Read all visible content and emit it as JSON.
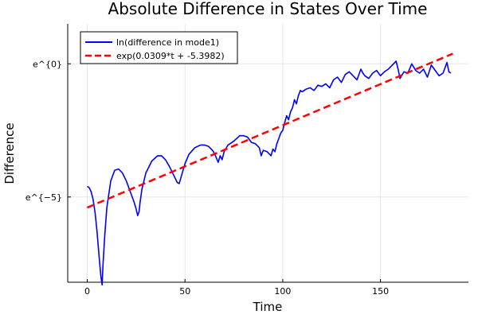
{
  "chart_data": {
    "type": "line",
    "title": "Absolute Difference in States Over Time",
    "xlabel": "Time",
    "ylabel": "Difference",
    "xlim": [
      -10,
      195
    ],
    "ylim": [
      -8.2,
      1.5
    ],
    "y_scale": "log (natural)",
    "grid": true,
    "legend_position": "top-left",
    "x_ticks": [
      {
        "value": 0,
        "label": "0"
      },
      {
        "value": 50,
        "label": "50"
      },
      {
        "value": 100,
        "label": "100"
      },
      {
        "value": 150,
        "label": "150"
      }
    ],
    "y_ticks": [
      {
        "value": 0,
        "label": "e^{0}"
      },
      {
        "value": -5,
        "label": "e^{−5}"
      }
    ],
    "series": [
      {
        "name": "ln(difference in mode1)",
        "color": "#0000ff",
        "style": "solid",
        "x": [
          0,
          1,
          2,
          3,
          4,
          5,
          6,
          7,
          7.6,
          8,
          9,
          10,
          12,
          14,
          16,
          18,
          20,
          22,
          24,
          25,
          25.8,
          26.5,
          27,
          28,
          30,
          33,
          36,
          38,
          40,
          42,
          44,
          46,
          47,
          48,
          50,
          52,
          55,
          58,
          60,
          62,
          64,
          65,
          67,
          68,
          69,
          70,
          72,
          75,
          78,
          80,
          82,
          84,
          86,
          88,
          89,
          90,
          92,
          94,
          95,
          96,
          97,
          98,
          99,
          100,
          101,
          102,
          103,
          104,
          105,
          106,
          107,
          108,
          109,
          110,
          112,
          114,
          116,
          118,
          120,
          122,
          124,
          126,
          128,
          130,
          132,
          134,
          136,
          138,
          140,
          141,
          142,
          144,
          146,
          148,
          150,
          152,
          154,
          156,
          158,
          159,
          160,
          162,
          164,
          166,
          168,
          170,
          172,
          174,
          176,
          178,
          180,
          182,
          184,
          185,
          186
        ],
        "y": [
          -4.6,
          -4.65,
          -4.8,
          -5.1,
          -5.6,
          -6.3,
          -7.2,
          -8.0,
          -8.3,
          -7.6,
          -6.4,
          -5.4,
          -4.4,
          -4.0,
          -3.95,
          -4.1,
          -4.4,
          -4.8,
          -5.2,
          -5.45,
          -5.7,
          -5.55,
          -5.2,
          -4.7,
          -4.1,
          -3.65,
          -3.45,
          -3.45,
          -3.6,
          -3.85,
          -4.15,
          -4.45,
          -4.5,
          -4.25,
          -3.75,
          -3.4,
          -3.15,
          -3.05,
          -3.05,
          -3.1,
          -3.25,
          -3.35,
          -3.7,
          -3.45,
          -3.6,
          -3.3,
          -3.05,
          -2.9,
          -2.7,
          -2.7,
          -2.75,
          -2.95,
          -3.0,
          -3.15,
          -3.45,
          -3.25,
          -3.3,
          -3.45,
          -3.2,
          -3.3,
          -3.0,
          -2.8,
          -2.6,
          -2.5,
          -2.2,
          -1.95,
          -2.1,
          -1.8,
          -1.65,
          -1.35,
          -1.5,
          -1.2,
          -1.0,
          -1.05,
          -0.95,
          -0.9,
          -1.0,
          -0.8,
          -0.85,
          -0.75,
          -0.9,
          -0.6,
          -0.5,
          -0.7,
          -0.4,
          -0.3,
          -0.45,
          -0.6,
          -0.2,
          -0.35,
          -0.45,
          -0.55,
          -0.35,
          -0.25,
          -0.45,
          -0.3,
          -0.2,
          -0.05,
          0.1,
          -0.2,
          -0.55,
          -0.3,
          -0.35,
          0.0,
          -0.25,
          -0.35,
          -0.2,
          -0.5,
          -0.05,
          -0.25,
          -0.45,
          -0.35,
          0.05,
          -0.3,
          -0.35
        ]
      },
      {
        "name": "exp(0.0309*t + -5.3982)",
        "color": "#ff0000",
        "style": "dashed",
        "x": [
          0,
          187
        ],
        "y": [
          -5.3982,
          0.3801
        ]
      }
    ]
  }
}
